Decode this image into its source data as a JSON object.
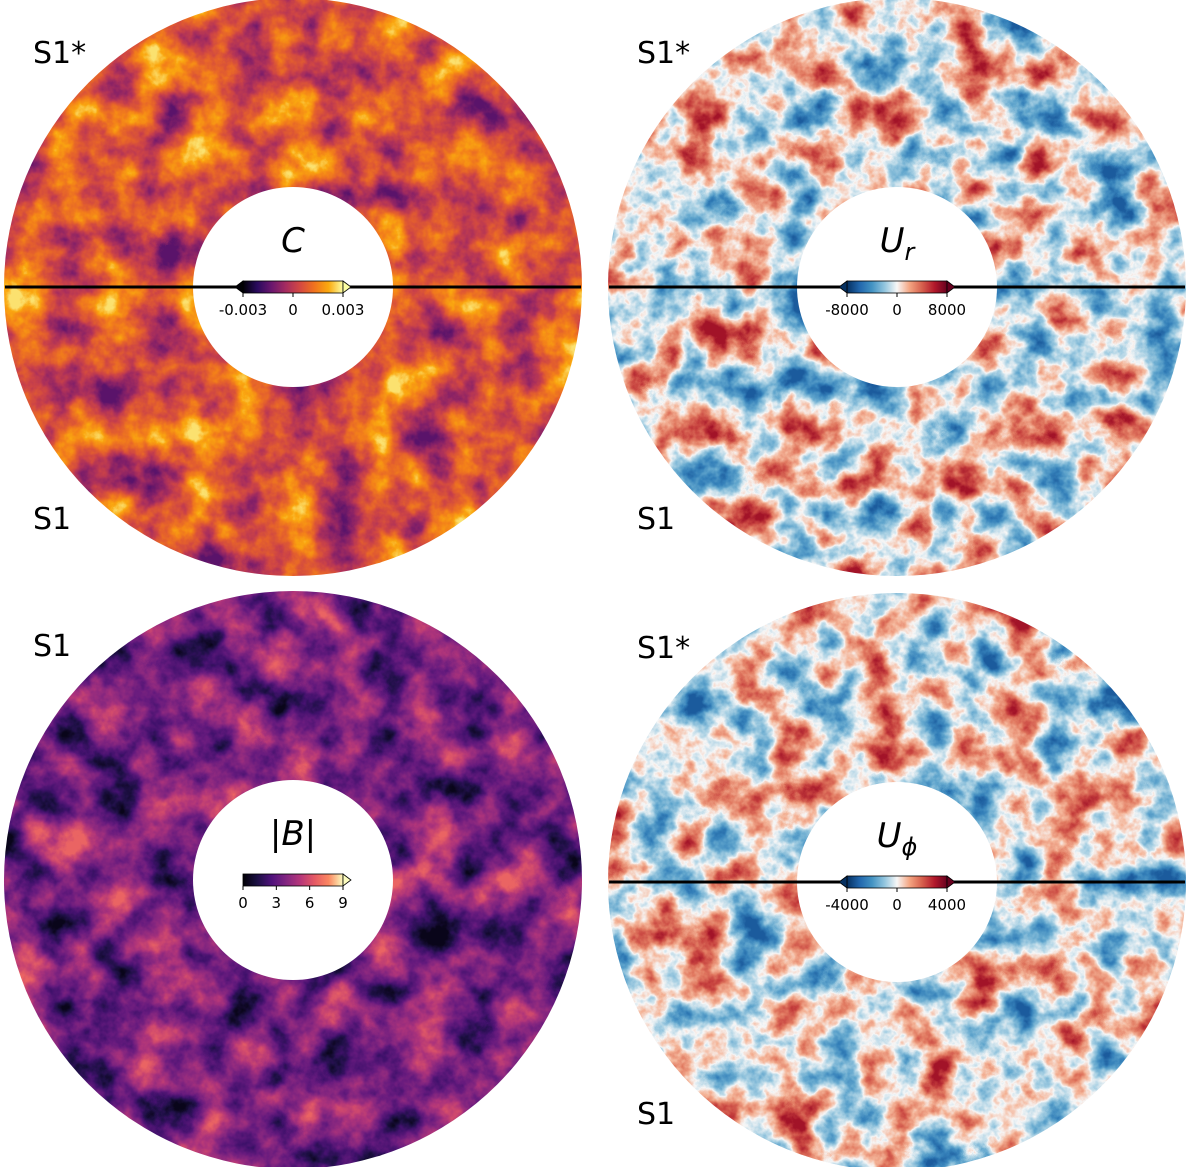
{
  "panels": [
    {
      "top_label": "S1*",
      "bottom_label": "S1",
      "symbol": "C",
      "subscript": null,
      "colormap": "inferno",
      "clim": [
        -0.003,
        0.003
      ],
      "ticks": [
        -0.003,
        0,
        0.003
      ],
      "extend": "both",
      "seed": 3
    },
    {
      "top_label": "S1*",
      "bottom_label": "S1",
      "symbol": "U",
      "subscript": "r",
      "colormap": "rdbu",
      "clim": [
        -8000,
        8000
      ],
      "ticks": [
        -8000,
        0,
        8000
      ],
      "extend": "both",
      "seed": 11
    },
    {
      "top_label": "S1",
      "bottom_label": null,
      "symbol": "|B|",
      "subscript": null,
      "colormap": "magma",
      "clim": [
        0,
        9
      ],
      "ticks": [
        0,
        3,
        6,
        9
      ],
      "extend": "max",
      "seed": 21
    },
    {
      "top_label": "S1*",
      "bottom_label": "S1",
      "symbol": "U",
      "subscript": "ϕ",
      "colormap": "rdbu",
      "clim": [
        -4000,
        4000
      ],
      "ticks": [
        -4000,
        0,
        4000
      ],
      "extend": "both",
      "seed": 7
    }
  ]
}
